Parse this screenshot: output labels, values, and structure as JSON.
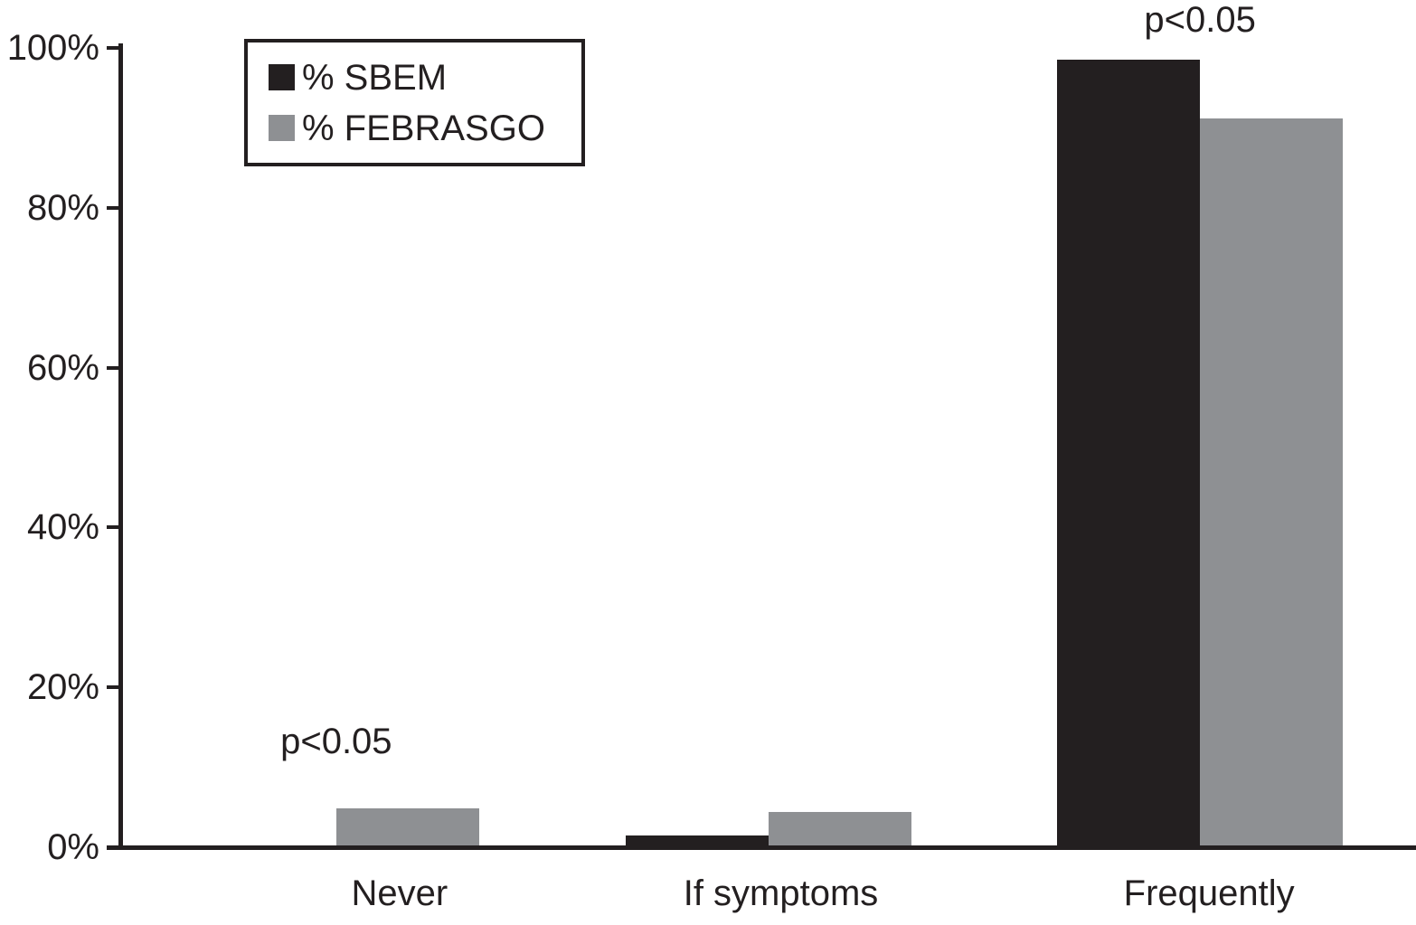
{
  "chart_data": {
    "type": "bar",
    "categories": [
      "Never",
      "If symptoms",
      "Frequently"
    ],
    "series": [
      {
        "name": "% SBEM",
        "color": "#231f20",
        "values": [
          0,
          1.5,
          98.5
        ]
      },
      {
        "name": "% FEBRASGO",
        "color": "#8e9093",
        "values": [
          4.9,
          4.4,
          91.2
        ]
      }
    ],
    "title": "",
    "xlabel": "",
    "ylabel": "",
    "ylim": [
      0,
      100
    ],
    "yticks": [
      "0%",
      "20%",
      "40%",
      "60%",
      "80%",
      "100%"
    ],
    "grid": false,
    "legend_position": "top-left",
    "annotations": [
      {
        "text": "p<0.05",
        "category": "Never",
        "gap": 52
      },
      {
        "text": "p<0.05",
        "category": "Frequently",
        "gap": 22
      }
    ],
    "colors": {
      "axis": "#231f20",
      "text": "#231f20",
      "background": "#ffffff"
    }
  }
}
